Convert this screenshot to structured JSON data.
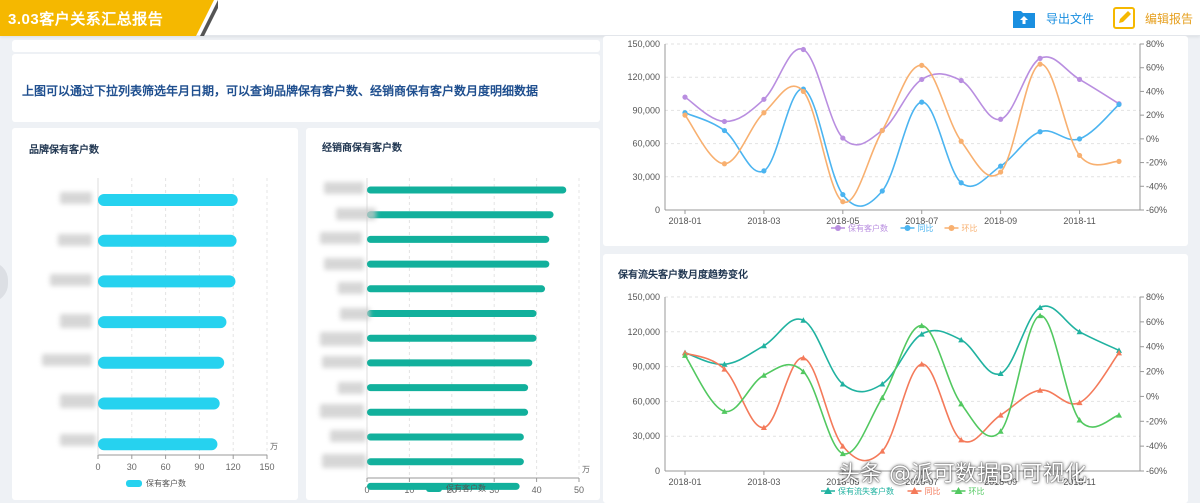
{
  "header": {
    "title": "3.03客户关系汇总报告",
    "export_label": "导出文件",
    "edit_label": "编辑报告"
  },
  "colors": {
    "title_bg": "#f5b800",
    "brand_blue": "#1a8fe0",
    "bar_cyan": "#26d2ef",
    "bar_teal": "#12b09c",
    "purple": "#b98ee0",
    "blue": "#4bb4f0",
    "orange": "#f8b070",
    "teal_line": "#20b2a0",
    "red_line": "#f47a5a",
    "green_line": "#52c860"
  },
  "description": "上图可以通过下拉列表筛选年月日期，可以查询品牌保有客户数、经销商保有客户数月度明细数据",
  "watermark": "头条 @派可数据BI可视化",
  "chart_data": [
    {
      "id": "brand",
      "type": "bar",
      "orientation": "horizontal",
      "title": "品牌保有客户数",
      "series": [
        {
          "name": "保有客户数",
          "values": [
            124,
            123,
            122,
            114,
            112,
            108,
            106
          ]
        }
      ],
      "xlim": [
        0,
        150
      ],
      "xticks": [
        "0",
        "30",
        "60",
        "90",
        "120",
        "150"
      ],
      "unit": "万",
      "legend": "保有客户数"
    },
    {
      "id": "dealer",
      "type": "bar",
      "orientation": "horizontal",
      "title": "经销商保有客户数",
      "series": [
        {
          "name": "保有客户数",
          "values": [
            47,
            44,
            43,
            43,
            42,
            40,
            40,
            39,
            38,
            38,
            37,
            37,
            36
          ]
        }
      ],
      "xlim": [
        0,
        50
      ],
      "xticks": [
        "0",
        "10",
        "20",
        "30",
        "40",
        "50"
      ],
      "unit": "万",
      "legend": "保有客户数"
    },
    {
      "id": "trend1",
      "type": "line",
      "title": "",
      "x": [
        "2018-01",
        "2018-02",
        "2018-03",
        "2018-04",
        "2018-05",
        "2018-06",
        "2018-07",
        "2018-08",
        "2018-09",
        "2018-10",
        "2018-11",
        "2018-12"
      ],
      "xticks": [
        "2018-01",
        "2018-03",
        "2018-05",
        "2018-07",
        "2018-09",
        "2018-11"
      ],
      "ylim": [
        0,
        150000
      ],
      "yticks": [
        "0",
        "30,000",
        "60,000",
        "90,000",
        "120,000",
        "150,000"
      ],
      "y2lim": [
        -60,
        80
      ],
      "y2ticks": [
        "-60%",
        "-40%",
        "-20%",
        "0%",
        "20%",
        "40%",
        "60%",
        "80%"
      ],
      "series": [
        {
          "name": "保有客户数",
          "axis": "left",
          "values": [
            102000,
            80000,
            100000,
            145000,
            65000,
            72000,
            118000,
            117000,
            82000,
            137000,
            118000,
            96000
          ]
        },
        {
          "name": "同比",
          "axis": "right",
          "values": [
            22,
            7,
            -27,
            42,
            -47,
            -44,
            31,
            -37,
            -23,
            6,
            0,
            29
          ]
        },
        {
          "name": "环比",
          "axis": "right",
          "values": [
            20,
            -21,
            22,
            40,
            -53,
            7,
            62,
            -2,
            -28,
            63,
            -14,
            -19
          ]
        }
      ],
      "legend": [
        "保有客户数",
        "同比",
        "环比"
      ]
    },
    {
      "id": "trend2",
      "type": "line",
      "title": "保有流失客户数月度趋势变化",
      "x": [
        "2018-01",
        "2018-02",
        "2018-03",
        "2018-04",
        "2018-05",
        "2018-06",
        "2018-07",
        "2018-08",
        "2018-09",
        "2018-10",
        "2018-11",
        "2018-12"
      ],
      "xticks": [
        "2018-01",
        "2018-03",
        "2018-05",
        "2018-07",
        "2018-09",
        "2018-11"
      ],
      "ylim": [
        0,
        150000
      ],
      "yticks": [
        "0",
        "30,000",
        "60,000",
        "90,000",
        "120,000",
        "150,000"
      ],
      "y2lim": [
        -60,
        80
      ],
      "y2ticks": [
        "-60%",
        "-40%",
        "-20%",
        "0%",
        "20%",
        "40%",
        "60%",
        "80%"
      ],
      "series": [
        {
          "name": "保有流失客户数",
          "axis": "left",
          "values": [
            102000,
            92000,
            108000,
            130000,
            75000,
            75000,
            118000,
            113000,
            84000,
            141000,
            120000,
            104000
          ]
        },
        {
          "name": "同比",
          "axis": "right",
          "values": [
            35,
            22,
            -25,
            31,
            -40,
            -44,
            26,
            -35,
            -15,
            5,
            -5,
            35
          ]
        },
        {
          "name": "环比",
          "axis": "right",
          "values": [
            33,
            -12,
            17,
            20,
            -46,
            -1,
            57,
            -6,
            -28,
            65,
            -19,
            -15
          ]
        }
      ],
      "legend": [
        "保有流失客户数",
        "同比",
        "环比"
      ]
    }
  ]
}
